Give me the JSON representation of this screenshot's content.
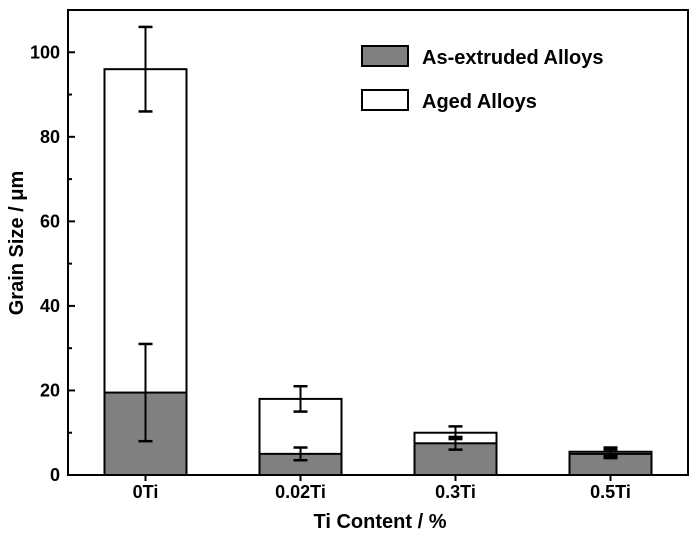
{
  "chart_data": {
    "type": "bar",
    "stacking": "overlay",
    "categories": [
      "0Ti",
      "0.02Ti",
      "0.3Ti",
      "0.5Ti"
    ],
    "series": [
      {
        "name": "As-extruded Alloys",
        "color": "#808080",
        "values": [
          19.5,
          5,
          7.5,
          5
        ],
        "errors": [
          11.5,
          1.5,
          1.5,
          1
        ]
      },
      {
        "name": "Aged Alloys",
        "color": "#ffffff",
        "values": [
          96,
          18,
          10,
          5.5
        ],
        "errors": [
          10,
          3,
          1.5,
          1
        ]
      }
    ],
    "xlabel": "Ti Content / %",
    "ylabel": "Grain Size / μm",
    "ylim": [
      0,
      110
    ],
    "yticks": [
      0,
      20,
      40,
      60,
      80,
      100
    ],
    "grid": false,
    "legend_position": "top-right"
  }
}
